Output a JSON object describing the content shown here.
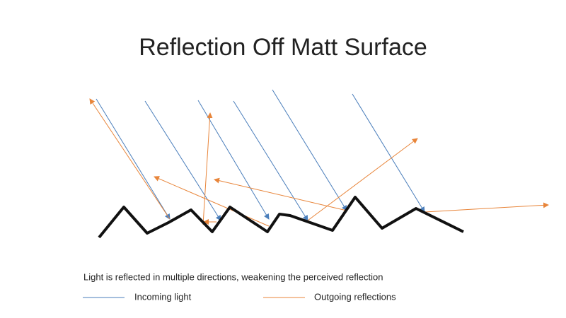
{
  "title": "Reflection Off Matt Surface",
  "caption": "Light is reflected in multiple directions, weakening the perceived reflection",
  "legend": [
    {
      "label": "Incoming light"
    },
    {
      "label": "Outgoing reflections"
    }
  ]
}
